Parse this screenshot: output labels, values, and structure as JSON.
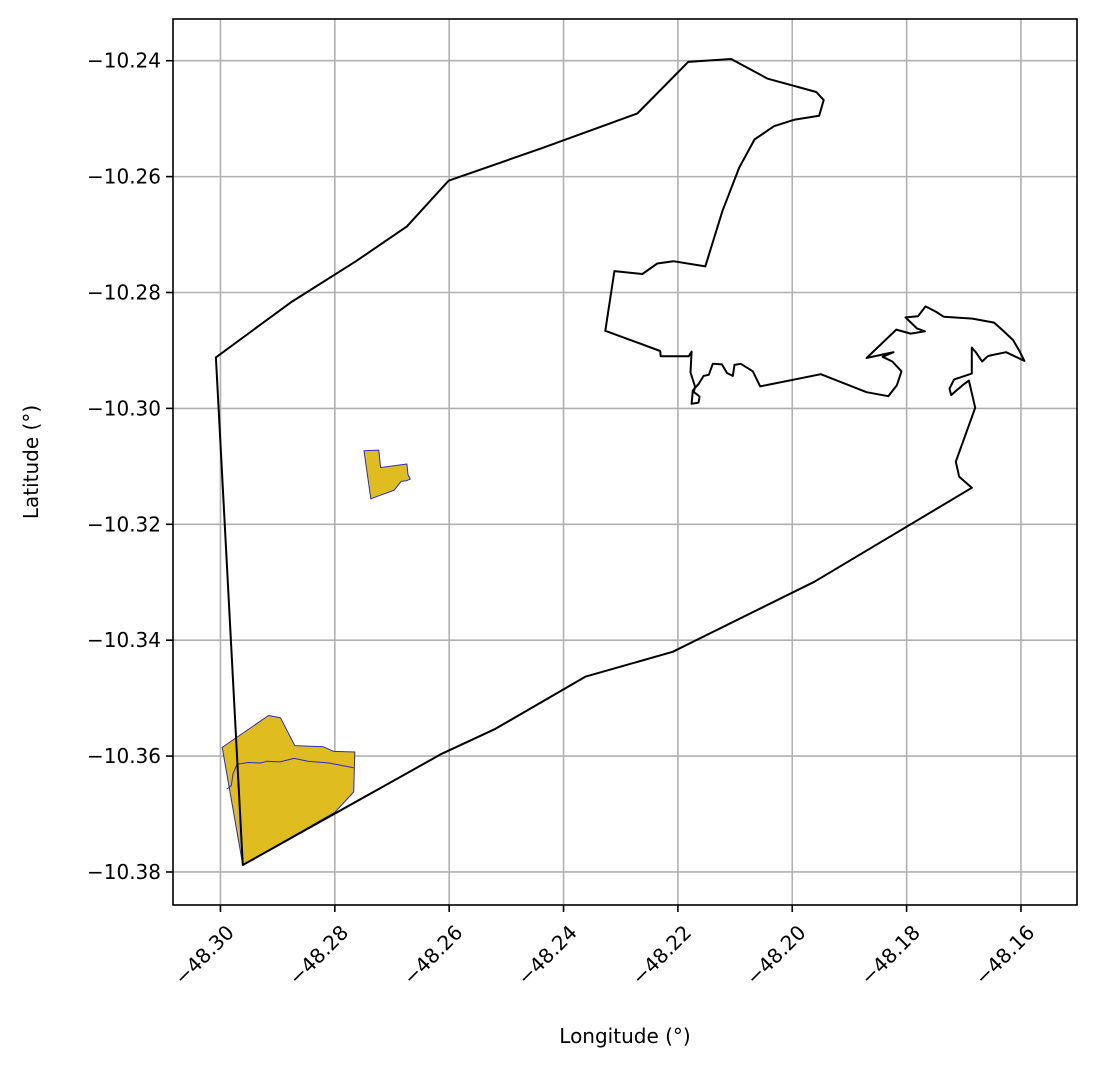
{
  "chart_data": {
    "type": "map",
    "xlabel": "Longitude (°)",
    "ylabel": "Latitude (°)",
    "xlim": [
      -48.3083,
      -48.1502
    ],
    "ylim": [
      -10.3857,
      -10.2328
    ],
    "grid": true,
    "x_ticks": [
      -48.3,
      -48.28,
      -48.26,
      -48.24,
      -48.22,
      -48.2,
      -48.18,
      -48.16
    ],
    "x_tick_labels": [
      "−48.30",
      "−48.28",
      "−48.26",
      "−48.24",
      "−48.22",
      "−48.20",
      "−48.18",
      "−48.16"
    ],
    "y_ticks": [
      -10.24,
      -10.26,
      -10.28,
      -10.3,
      -10.32,
      -10.34,
      -10.36,
      -10.38
    ],
    "y_tick_labels": [
      "−10.24",
      "−10.26",
      "−10.28",
      "−10.30",
      "−10.32",
      "−10.34",
      "−10.36",
      "−10.38"
    ],
    "boundary": {
      "stroke": "#000000",
      "fill": "none",
      "coords": [
        [
          -48.3008,
          -10.2912
        ],
        [
          -48.2877,
          -10.2817
        ],
        [
          -48.2763,
          -10.2746
        ],
        [
          -48.2674,
          -10.2686
        ],
        [
          -48.2601,
          -10.2607
        ],
        [
          -48.2438,
          -10.2551
        ],
        [
          -48.2271,
          -10.2491
        ],
        [
          -48.2182,
          -10.2402
        ],
        [
          -48.2107,
          -10.2397
        ],
        [
          -48.2043,
          -10.2431
        ],
        [
          -48.1958,
          -10.2454
        ],
        [
          -48.1945,
          -10.2468
        ],
        [
          -48.1953,
          -10.2495
        ],
        [
          -48.1997,
          -10.2502
        ],
        [
          -48.2032,
          -10.2513
        ],
        [
          -48.2066,
          -10.2536
        ],
        [
          -48.2093,
          -10.2585
        ],
        [
          -48.2122,
          -10.2659
        ],
        [
          -48.2152,
          -10.2755
        ],
        [
          -48.2208,
          -10.2746
        ],
        [
          -48.2236,
          -10.275
        ],
        [
          -48.2262,
          -10.2768
        ],
        [
          -48.2311,
          -10.2763
        ],
        [
          -48.2327,
          -10.2866
        ],
        [
          -48.2231,
          -10.2901
        ],
        [
          -48.223,
          -10.291
        ],
        [
          -48.2181,
          -10.291
        ],
        [
          -48.2176,
          -10.2902
        ],
        [
          -48.2178,
          -10.2938
        ],
        [
          -48.217,
          -10.2962
        ],
        [
          -48.2172,
          -10.2972
        ],
        [
          -48.2165,
          -10.2977
        ],
        [
          -48.2162,
          -10.298
        ],
        [
          -48.2164,
          -10.299
        ],
        [
          -48.2176,
          -10.2992
        ],
        [
          -48.2174,
          -10.2969
        ],
        [
          -48.2164,
          -10.2958
        ],
        [
          -48.2155,
          -10.2944
        ],
        [
          -48.2146,
          -10.2942
        ],
        [
          -48.2139,
          -10.2923
        ],
        [
          -48.2123,
          -10.2924
        ],
        [
          -48.2114,
          -10.2939
        ],
        [
          -48.2104,
          -10.2944
        ],
        [
          -48.2101,
          -10.2925
        ],
        [
          -48.209,
          -10.2923
        ],
        [
          -48.2069,
          -10.2936
        ],
        [
          -48.2056,
          -10.2962
        ],
        [
          -48.195,
          -10.2941
        ],
        [
          -48.187,
          -10.2972
        ],
        [
          -48.1832,
          -10.2979
        ],
        [
          -48.1817,
          -10.296
        ],
        [
          -48.1809,
          -10.2936
        ],
        [
          -48.1825,
          -10.2919
        ],
        [
          -48.1842,
          -10.2911
        ],
        [
          -48.1823,
          -10.2903
        ],
        [
          -48.187,
          -10.2913
        ],
        [
          -48.1818,
          -10.2864
        ],
        [
          -48.1793,
          -10.2871
        ],
        [
          -48.1768,
          -10.2867
        ],
        [
          -48.1782,
          -10.2862
        ],
        [
          -48.1802,
          -10.2843
        ],
        [
          -48.178,
          -10.2841
        ],
        [
          -48.1767,
          -10.2824
        ],
        [
          -48.1749,
          -10.2833
        ],
        [
          -48.1735,
          -10.2842
        ],
        [
          -48.1685,
          -10.2845
        ],
        [
          -48.1647,
          -10.2852
        ],
        [
          -48.1631,
          -10.2866
        ],
        [
          -48.1614,
          -10.2882
        ],
        [
          -48.1603,
          -10.29
        ],
        [
          -48.1594,
          -10.2918
        ],
        [
          -48.1626,
          -10.2903
        ],
        [
          -48.1651,
          -10.2908
        ],
        [
          -48.1658,
          -10.291
        ],
        [
          -48.1668,
          -10.2919
        ],
        [
          -48.1679,
          -10.2903
        ],
        [
          -48.1686,
          -10.2895
        ],
        [
          -48.1686,
          -10.294
        ],
        [
          -48.1717,
          -10.295
        ],
        [
          -48.1725,
          -10.2966
        ],
        [
          -48.1722,
          -10.2977
        ],
        [
          -48.1714,
          -10.297
        ],
        [
          -48.1702,
          -10.296
        ],
        [
          -48.1691,
          -10.2952
        ],
        [
          -48.168,
          -10.2999
        ],
        [
          -48.1714,
          -10.3092
        ],
        [
          -48.1708,
          -10.3118
        ],
        [
          -48.1686,
          -10.3137
        ],
        [
          -48.1961,
          -10.3299
        ],
        [
          -48.2209,
          -10.342
        ],
        [
          -48.2362,
          -10.3463
        ],
        [
          -48.2519,
          -10.3553
        ],
        [
          -48.2613,
          -10.3596
        ],
        [
          -48.2961,
          -10.3788
        ],
        [
          -48.3008,
          -10.2912
        ]
      ]
    },
    "highlighted_areas": {
      "fill": "#dfbd20",
      "stroke": "#2a2acc",
      "polygons": [
        {
          "coords": [
            [
              -48.2749,
              -10.3073
            ],
            [
              -48.2723,
              -10.3072
            ],
            [
              -48.272,
              -10.3102
            ],
            [
              -48.2674,
              -10.3096
            ],
            [
              -48.2672,
              -10.3114
            ],
            [
              -48.2668,
              -10.3122
            ],
            [
              -48.2675,
              -10.3125
            ],
            [
              -48.2684,
              -10.3126
            ],
            [
              -48.2696,
              -10.3141
            ],
            [
              -48.2737,
              -10.3156
            ],
            [
              -48.2749,
              -10.3073
            ]
          ]
        },
        {
          "coords": [
            [
              -48.2997,
              -10.3585
            ],
            [
              -48.2916,
              -10.353
            ],
            [
              -48.2895,
              -10.3534
            ],
            [
              -48.287,
              -10.3582
            ],
            [
              -48.282,
              -10.3584
            ],
            [
              -48.2802,
              -10.3592
            ],
            [
              -48.2765,
              -10.3593
            ],
            [
              -48.2767,
              -10.3662
            ],
            [
              -48.28,
              -10.3697
            ],
            [
              -48.2961,
              -10.3788
            ],
            [
              -48.2997,
              -10.3585
            ]
          ]
        }
      ],
      "inner_line": [
        [
          -48.2989,
          -10.3657
        ],
        [
          -48.2981,
          -10.3651
        ],
        [
          -48.2978,
          -10.3631
        ],
        [
          -48.2971,
          -10.3614
        ],
        [
          -48.2951,
          -10.3611
        ],
        [
          -48.293,
          -10.3612
        ],
        [
          -48.2919,
          -10.3609
        ],
        [
          -48.2896,
          -10.361
        ],
        [
          -48.2871,
          -10.3604
        ],
        [
          -48.2847,
          -10.3609
        ],
        [
          -48.281,
          -10.3612
        ],
        [
          -48.2767,
          -10.362
        ]
      ]
    }
  }
}
